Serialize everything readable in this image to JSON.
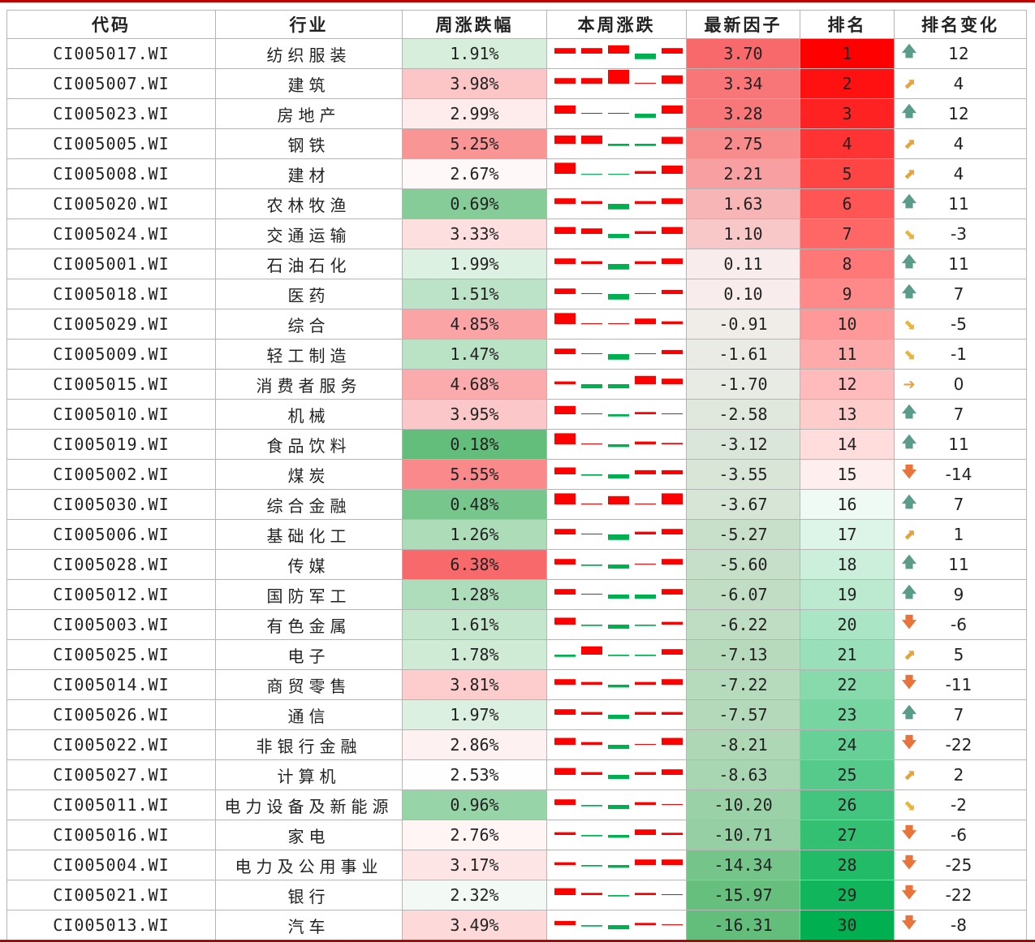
{
  "headers": [
    "代码",
    "行业",
    "周涨跌幅",
    "本周涨跌",
    "最新因子",
    "排名",
    "排名变化"
  ],
  "rows": [
    {
      "code": "CI005017.WI",
      "industry": "纺织服装",
      "weekly": "1.91%",
      "daily": [
        2,
        2,
        3,
        -2,
        2
      ],
      "factor": "3.70",
      "rank": "1",
      "dir": "up",
      "change": "12"
    },
    {
      "code": "CI005007.WI",
      "industry": "建筑",
      "weekly": "3.98%",
      "daily": [
        2,
        2,
        5,
        0,
        3
      ],
      "factor": "3.34",
      "rank": "2",
      "dir": "upright",
      "change": "4"
    },
    {
      "code": "CI005023.WI",
      "industry": "房地产",
      "weekly": "2.99%",
      "daily": [
        3,
        0.3,
        0.3,
        -1.5,
        3
      ],
      "factor": "3.28",
      "rank": "3",
      "dir": "up",
      "change": "12"
    },
    {
      "code": "CI005005.WI",
      "industry": "钢铁",
      "weekly": "5.25%",
      "daily": [
        3,
        3,
        -0.8,
        -0.8,
        2.5
      ],
      "factor": "2.75",
      "rank": "4",
      "dir": "upright",
      "change": "4"
    },
    {
      "code": "CI005008.WI",
      "industry": "建材",
      "weekly": "2.67%",
      "daily": [
        4,
        -0.3,
        -0.3,
        1,
        3
      ],
      "factor": "2.21",
      "rank": "5",
      "dir": "upright",
      "change": "4"
    },
    {
      "code": "CI005020.WI",
      "industry": "农林牧渔",
      "weekly": "0.69%",
      "daily": [
        2,
        1,
        -2,
        1,
        2
      ],
      "factor": "1.63",
      "rank": "6",
      "dir": "up",
      "change": "11"
    },
    {
      "code": "CI005024.WI",
      "industry": "交通运输",
      "weekly": "3.33%",
      "daily": [
        2.5,
        2,
        -1.5,
        1,
        2.5
      ],
      "factor": "1.10",
      "rank": "7",
      "dir": "downright",
      "change": "-3"
    },
    {
      "code": "CI005001.WI",
      "industry": "石油石化",
      "weekly": "1.99%",
      "daily": [
        2,
        1,
        -2,
        1,
        2
      ],
      "factor": "0.11",
      "rank": "8",
      "dir": "up",
      "change": "11"
    },
    {
      "code": "CI005018.WI",
      "industry": "医药",
      "weekly": "1.51%",
      "daily": [
        2,
        0.3,
        -2,
        0.3,
        1.5
      ],
      "factor": "0.10",
      "rank": "9",
      "dir": "up",
      "change": "7"
    },
    {
      "code": "CI005029.WI",
      "industry": "综合",
      "weekly": "4.85%",
      "daily": [
        4,
        0.3,
        0.3,
        2,
        1
      ],
      "factor": "-0.91",
      "rank": "10",
      "dir": "downright",
      "change": "-5"
    },
    {
      "code": "CI005009.WI",
      "industry": "轻工制造",
      "weekly": "1.47%",
      "daily": [
        2,
        0.3,
        -2,
        0.3,
        1.5
      ],
      "factor": "-1.61",
      "rank": "11",
      "dir": "downright",
      "change": "-1"
    },
    {
      "code": "CI005015.WI",
      "industry": "消费者服务",
      "weekly": "4.68%",
      "daily": [
        1,
        -1.5,
        -1.5,
        3,
        2
      ],
      "factor": "-1.70",
      "rank": "12",
      "dir": "right",
      "change": "0"
    },
    {
      "code": "CI005010.WI",
      "industry": "机械",
      "weekly": "3.95%",
      "daily": [
        3,
        0.3,
        -0.8,
        0.8,
        0.3
      ],
      "factor": "-2.58",
      "rank": "13",
      "dir": "up",
      "change": "7"
    },
    {
      "code": "CI005019.WI",
      "industry": "食品饮料",
      "weekly": "0.18%",
      "daily": [
        4,
        0,
        -1,
        1,
        0.5
      ],
      "factor": "-3.12",
      "rank": "14",
      "dir": "up",
      "change": "11"
    },
    {
      "code": "CI005002.WI",
      "industry": "煤炭",
      "weekly": "5.55%",
      "daily": [
        2.5,
        -0.5,
        -1.5,
        1.5,
        1.5
      ],
      "factor": "-3.55",
      "rank": "15",
      "dir": "down",
      "change": "-14"
    },
    {
      "code": "CI005030.WI",
      "industry": "综合金融",
      "weekly": "0.48%",
      "daily": [
        4,
        0.3,
        3,
        0,
        4
      ],
      "factor": "-3.67",
      "rank": "16",
      "dir": "up",
      "change": "7"
    },
    {
      "code": "CI005006.WI",
      "industry": "基础化工",
      "weekly": "1.26%",
      "daily": [
        2,
        0.3,
        -2,
        1,
        2
      ],
      "factor": "-5.27",
      "rank": "17",
      "dir": "upright",
      "change": "1"
    },
    {
      "code": "CI005028.WI",
      "industry": "传媒",
      "weekly": "6.38%",
      "daily": [
        2,
        -0.5,
        -1.5,
        0.3,
        2
      ],
      "factor": "-5.60",
      "rank": "18",
      "dir": "up",
      "change": "11"
    },
    {
      "code": "CI005012.WI",
      "industry": "国防军工",
      "weekly": "1.28%",
      "daily": [
        2,
        0.3,
        -1.5,
        -1.5,
        2
      ],
      "factor": "-6.07",
      "rank": "19",
      "dir": "up",
      "change": "9"
    },
    {
      "code": "CI005003.WI",
      "industry": "有色金属",
      "weekly": "1.61%",
      "daily": [
        2.5,
        -0.5,
        -1.5,
        -0.5,
        1
      ],
      "factor": "-6.22",
      "rank": "20",
      "dir": "down",
      "change": "-6"
    },
    {
      "code": "CI005025.WI",
      "industry": "电子",
      "weekly": "1.78%",
      "daily": [
        -0.8,
        3,
        -0.5,
        -0.5,
        2
      ],
      "factor": "-7.13",
      "rank": "21",
      "dir": "upright",
      "change": "5"
    },
    {
      "code": "CI005014.WI",
      "industry": "商贸零售",
      "weekly": "3.81%",
      "daily": [
        2,
        1,
        -1,
        1,
        2
      ],
      "factor": "-7.22",
      "rank": "22",
      "dir": "down",
      "change": "-11"
    },
    {
      "code": "CI005026.WI",
      "industry": "通信",
      "weekly": "1.97%",
      "daily": [
        2,
        1,
        -1.5,
        1,
        1
      ],
      "factor": "-7.57",
      "rank": "23",
      "dir": "up",
      "change": "7"
    },
    {
      "code": "CI005022.WI",
      "industry": "非银行金融",
      "weekly": "2.86%",
      "daily": [
        2.5,
        1,
        -1.5,
        0.3,
        2.5
      ],
      "factor": "-8.21",
      "rank": "24",
      "dir": "down",
      "change": "-22"
    },
    {
      "code": "CI005027.WI",
      "industry": "计算机",
      "weekly": "2.53%",
      "daily": [
        2.5,
        1,
        -1.5,
        1,
        2
      ],
      "factor": "-8.63",
      "rank": "25",
      "dir": "upright",
      "change": "2"
    },
    {
      "code": "CI005011.WI",
      "industry": "电力设备及新能源",
      "weekly": "0.96%",
      "daily": [
        2,
        -0.5,
        -1.5,
        1,
        0.3
      ],
      "factor": "-10.20",
      "rank": "26",
      "dir": "downright",
      "change": "-2"
    },
    {
      "code": "CI005016.WI",
      "industry": "家电",
      "weekly": "2.76%",
      "daily": [
        1,
        -0.5,
        -1,
        2,
        0.8
      ],
      "factor": "-10.71",
      "rank": "27",
      "dir": "down",
      "change": "-6"
    },
    {
      "code": "CI005004.WI",
      "industry": "电力及公用事业",
      "weekly": "3.17%",
      "daily": [
        1,
        -0.5,
        -1,
        2,
        2
      ],
      "factor": "-14.34",
      "rank": "28",
      "dir": "down",
      "change": "-25"
    },
    {
      "code": "CI005021.WI",
      "industry": "银行",
      "weekly": "2.32%",
      "daily": [
        2.5,
        0.8,
        -0.5,
        0.8,
        0.3
      ],
      "factor": "-15.97",
      "rank": "29",
      "dir": "down",
      "change": "-22"
    },
    {
      "code": "CI005013.WI",
      "industry": "汽车",
      "weekly": "3.49%",
      "daily": [
        1.5,
        -0.5,
        -1.5,
        0.8,
        0.3
      ],
      "factor": "-16.31",
      "rank": "30",
      "dir": "down",
      "change": "-8"
    }
  ],
  "colors": {
    "spark_up": "#ff0000",
    "spark_down": "#00b050",
    "arrow_up": "#5b9b8a",
    "arrow_down": "#e8743b",
    "arrow_diag_up": "#e6a23c",
    "arrow_diag_down": "#e8b53c",
    "arrow_right": "#e6a23c"
  },
  "arrow_icons": {
    "up": "arrow-up-icon",
    "down": "arrow-down-icon",
    "upright": "arrow-up-right-icon",
    "downright": "arrow-down-right-icon",
    "right": "arrow-right-icon"
  }
}
